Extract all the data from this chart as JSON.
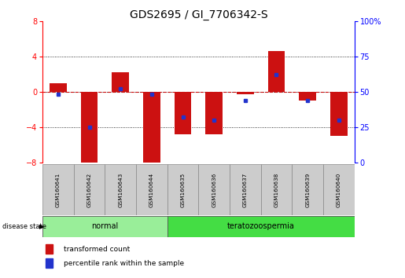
{
  "title": "GDS2695 / GI_7706342-S",
  "samples": [
    "GSM160641",
    "GSM160642",
    "GSM160643",
    "GSM160644",
    "GSM160635",
    "GSM160636",
    "GSM160637",
    "GSM160638",
    "GSM160639",
    "GSM160640"
  ],
  "disease_state": [
    "normal",
    "normal",
    "normal",
    "normal",
    "teratozoospermia",
    "teratozoospermia",
    "teratozoospermia",
    "teratozoospermia",
    "teratozoospermia",
    "teratozoospermia"
  ],
  "transformed_count": [
    1.0,
    -8.2,
    2.2,
    -8.5,
    -4.8,
    -4.8,
    -0.3,
    4.6,
    -1.0,
    -5.0
  ],
  "percentile_rank": [
    48,
    25,
    52,
    48,
    32,
    30,
    44,
    62,
    44,
    30
  ],
  "bar_color": "#cc1111",
  "dot_color": "#2233cc",
  "ylim": [
    -8,
    8
  ],
  "yticks_left": [
    -8,
    -4,
    0,
    4,
    8
  ],
  "yticks_right": [
    0,
    25,
    50,
    75,
    100
  ],
  "normal_color": "#99ee99",
  "terato_color": "#44dd44",
  "label_bar_bg": "#cccccc",
  "normal_label": "normal",
  "terato_label": "teratozoospermia",
  "disease_state_label": "disease state",
  "legend_red_label": "transformed count",
  "legend_blue_label": "percentile rank within the sample",
  "title_fontsize": 10,
  "tick_fontsize": 7,
  "bar_width": 0.55
}
